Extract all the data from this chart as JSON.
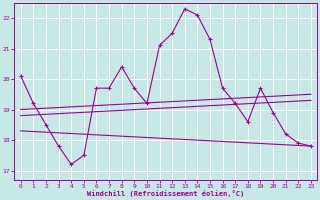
{
  "background_color": "#c8e8e8",
  "grid_color": "#ffffff",
  "line_color": "#990099",
  "xlabel": "Windchill (Refroidissement éolien,°C)",
  "xlim": [
    -0.5,
    23.5
  ],
  "ylim": [
    16.7,
    22.5
  ],
  "yticks": [
    17,
    18,
    19,
    20,
    21,
    22
  ],
  "xticks": [
    0,
    1,
    2,
    3,
    4,
    5,
    6,
    7,
    8,
    9,
    10,
    11,
    12,
    13,
    14,
    15,
    16,
    17,
    18,
    19,
    20,
    21,
    22,
    23
  ],
  "series1_x": [
    0,
    1,
    2,
    3,
    4,
    5,
    6,
    7,
    8,
    9,
    10,
    11,
    12,
    13,
    14,
    15,
    16,
    17,
    18,
    19,
    20,
    21,
    22,
    23
  ],
  "series1_y": [
    20.1,
    19.2,
    18.5,
    17.8,
    17.2,
    17.5,
    19.7,
    19.7,
    20.4,
    19.7,
    19.2,
    21.1,
    21.5,
    22.3,
    22.1,
    21.3,
    19.7,
    19.2,
    18.6,
    19.7,
    18.9,
    18.2,
    17.9,
    17.8
  ],
  "series2_x": [
    0,
    23
  ],
  "series2_y": [
    18.3,
    17.8
  ],
  "series3_x": [
    0,
    23
  ],
  "series3_y": [
    18.8,
    19.3
  ],
  "series4_x": [
    0,
    23
  ],
  "series4_y": [
    19.0,
    19.5
  ],
  "lw1": 0.8,
  "lw2": 0.8,
  "ms": 3.0
}
